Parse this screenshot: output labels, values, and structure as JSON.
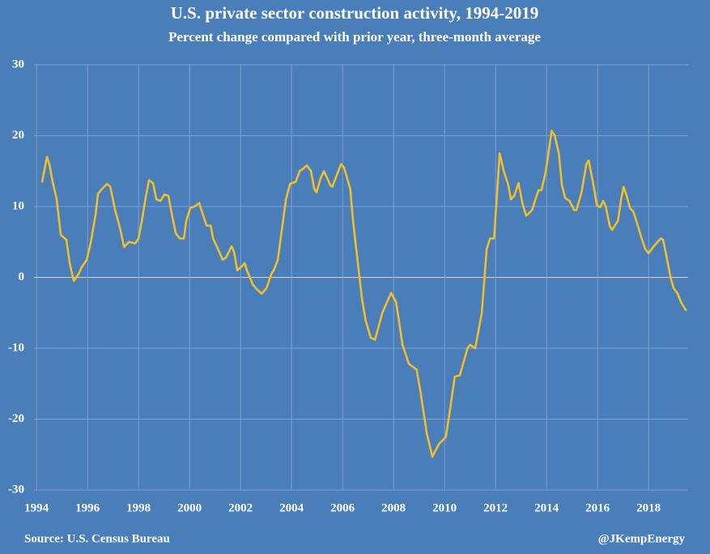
{
  "chart_data": {
    "type": "line",
    "title": "U.S. private sector construction activity, 1994-2019",
    "subtitle": "Percent change compared with prior year, three-month average",
    "source": "Source: U.S. Census Bureau",
    "credit": "@JKempEnergy",
    "color": "#f2bf26",
    "grid": true,
    "xlim": [
      1993.9,
      2019.55
    ],
    "xticks": [
      1994,
      1996,
      1998,
      2000,
      2002,
      2004,
      2006,
      2008,
      2010,
      2012,
      2014,
      2016,
      2018
    ],
    "ylim": [
      -30,
      30
    ],
    "yticks": [
      -30,
      -20,
      -10,
      0,
      10,
      20,
      30
    ],
    "x": [
      1994.22,
      1994.41,
      1994.5,
      1994.63,
      1994.79,
      1994.95,
      1995.17,
      1995.3,
      1995.46,
      1995.65,
      1995.78,
      1995.97,
      1996.13,
      1996.32,
      1996.41,
      1996.57,
      1996.76,
      1996.89,
      1997.08,
      1997.27,
      1997.43,
      1997.62,
      1997.87,
      1998.0,
      1998.13,
      1998.29,
      1998.41,
      1998.57,
      1998.7,
      1998.86,
      1999.02,
      1999.17,
      1999.3,
      1999.46,
      1999.62,
      1999.78,
      1999.87,
      2000.03,
      2000.19,
      2000.38,
      2000.51,
      2000.67,
      2000.83,
      2000.92,
      2001.05,
      2001.3,
      2001.43,
      2001.65,
      2001.75,
      2001.87,
      2002.03,
      2002.16,
      2002.25,
      2002.48,
      2002.67,
      2002.83,
      2003.02,
      2003.21,
      2003.3,
      2003.46,
      2003.59,
      2003.78,
      2003.94,
      2004.16,
      2004.32,
      2004.44,
      2004.6,
      2004.76,
      2004.89,
      2004.98,
      2005.14,
      2005.27,
      2005.52,
      2005.6,
      2005.78,
      2005.94,
      2006.06,
      2006.3,
      2006.41,
      2006.6,
      2006.76,
      2006.9,
      2007.1,
      2007.27,
      2007.56,
      2007.9,
      2008.1,
      2008.35,
      2008.6,
      2008.9,
      2009.05,
      2009.3,
      2009.52,
      2009.78,
      2010.05,
      2010.2,
      2010.4,
      2010.6,
      2010.9,
      2011.0,
      2011.2,
      2011.46,
      2011.65,
      2011.78,
      2011.94,
      2012.16,
      2012.32,
      2012.5,
      2012.6,
      2012.73,
      2012.9,
      2013.05,
      2013.2,
      2013.43,
      2013.68,
      2013.8,
      2013.97,
      2014.2,
      2014.32,
      2014.48,
      2014.6,
      2014.73,
      2014.9,
      2015.08,
      2015.17,
      2015.37,
      2015.56,
      2015.65,
      2015.84,
      2015.97,
      2016.1,
      2016.22,
      2016.32,
      2016.48,
      2016.57,
      2016.8,
      2016.92,
      2017.02,
      2017.14,
      2017.27,
      2017.4,
      2017.56,
      2017.71,
      2017.87,
      2018.0,
      2018.16,
      2018.35,
      2018.48,
      2018.57,
      2018.7,
      2018.86,
      2018.98,
      2019.14,
      2019.27,
      2019.46
    ],
    "values": [
      13.5,
      17,
      16,
      13.5,
      11,
      6,
      5.3,
      2,
      -0.5,
      0.5,
      1.5,
      2.5,
      5,
      9,
      11.8,
      12.5,
      13.2,
      12.8,
      9.5,
      7,
      4.3,
      5,
      4.8,
      5.5,
      8,
      11.5,
      13.7,
      13.3,
      11,
      10.8,
      11.7,
      11.5,
      9,
      6.2,
      5.5,
      5.5,
      8,
      9.8,
      10,
      10.5,
      9,
      7.3,
      7.3,
      5.5,
      4.5,
      2.5,
      2.8,
      4.4,
      3.5,
      1,
      1.5,
      2,
      1,
      -1,
      -1.8,
      -2.3,
      -1.5,
      0.5,
      1,
      2.5,
      6,
      11,
      13.2,
      13.5,
      15,
      15.3,
      15.8,
      15,
      12.5,
      12,
      14,
      15,
      13,
      12.8,
      14.5,
      16,
      15.5,
      12.5,
      8,
      2,
      -3,
      -6,
      -8.5,
      -8.8,
      -5,
      -2.2,
      -3.5,
      -9.5,
      -12.2,
      -13,
      -16,
      -22,
      -25.3,
      -23.5,
      -22.5,
      -19,
      -14,
      -13.8,
      -10,
      -9.5,
      -10,
      -5,
      4,
      5.5,
      5.5,
      17.5,
      15,
      13,
      11,
      11.5,
      13.3,
      10.5,
      8.7,
      9.5,
      12.3,
      12.3,
      15,
      20.7,
      20,
      17.5,
      13,
      11.2,
      10.8,
      9.5,
      9.5,
      12,
      16,
      16.5,
      13,
      10.2,
      9.9,
      10.8,
      10,
      7.2,
      6.7,
      8,
      11,
      12.8,
      11.5,
      9.8,
      9.3,
      7.5,
      5.7,
      4,
      3.4,
      4.2,
      5,
      5.5,
      5.3,
      3,
      0,
      -1.5,
      -2.3,
      -3.5,
      -4.6
    ]
  }
}
